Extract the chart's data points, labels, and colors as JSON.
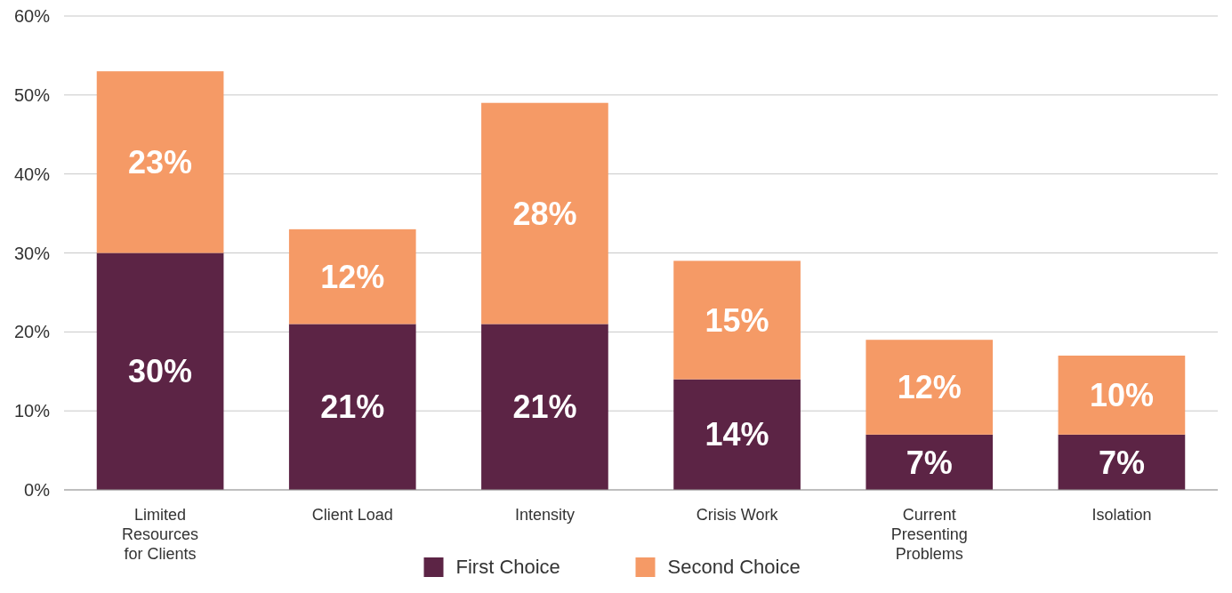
{
  "chart_data": {
    "type": "bar",
    "stacked": true,
    "categories": [
      "Limited Resources for Clients",
      "Client Load",
      "Intensity",
      "Crisis Work",
      "Current Presenting Problems",
      "Isolation"
    ],
    "series": [
      {
        "name": "First Choice",
        "color": "#5c2445",
        "values": [
          30,
          21,
          21,
          14,
          7,
          7
        ],
        "value_labels": [
          "30%",
          "21%",
          "21%",
          "14%",
          "7%",
          "7%"
        ]
      },
      {
        "name": "Second Choice",
        "color": "#f59a66",
        "values": [
          23,
          12,
          28,
          15,
          12,
          10
        ],
        "value_labels": [
          "23%",
          "12%",
          "28%",
          "15%",
          "12%",
          "10%"
        ]
      }
    ],
    "ylim": [
      0,
      60
    ],
    "yticks": [
      {
        "value": 0,
        "label": "0%"
      },
      {
        "value": 10,
        "label": "10%"
      },
      {
        "value": 20,
        "label": "20%"
      },
      {
        "value": 30,
        "label": "30%"
      },
      {
        "value": 40,
        "label": "40%"
      },
      {
        "value": 50,
        "label": "50%"
      },
      {
        "value": 60,
        "label": "60%"
      }
    ],
    "grid": "y",
    "legend": "bottom"
  }
}
